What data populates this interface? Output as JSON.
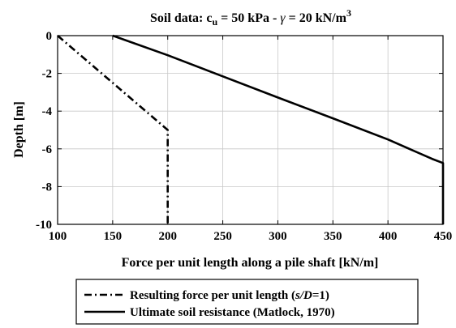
{
  "chart_data": {
    "type": "line",
    "title": {
      "prefix": "Soil data: c",
      "prefix_sub": "u",
      "middle": " = 50 kPa - ",
      "gamma": "γ",
      "suffix": " = 20 kN/m",
      "suffix_sup": "3"
    },
    "xlabel": "Force per unit length along a pile shaft [kN/m]",
    "ylabel": "Depth [m]",
    "xlim": [
      100,
      450
    ],
    "ylim": [
      -10,
      0
    ],
    "xticks": [
      100,
      150,
      200,
      250,
      300,
      350,
      400,
      450
    ],
    "yticks": [
      0,
      -2,
      -4,
      -6,
      -8,
      -10
    ],
    "grid": true,
    "legend_position": "below-plot",
    "series": [
      {
        "name_parts": [
          "Resulting force per unit length (",
          "s/D",
          "=1)"
        ],
        "style": "dash-dot",
        "color": "#000000",
        "x": [
          100,
          200,
          200
        ],
        "y": [
          0,
          -5,
          -10
        ]
      },
      {
        "name_parts": [
          "Ultimate soil resistance (Matlock, 1970)"
        ],
        "style": "solid",
        "color": "#000000",
        "x": [
          150,
          200,
          250,
          300,
          350,
          400,
          440,
          450,
          450
        ],
        "y": [
          0,
          -1.04,
          -2.16,
          -3.28,
          -4.38,
          -5.5,
          -6.53,
          -6.75,
          -10
        ]
      }
    ]
  }
}
